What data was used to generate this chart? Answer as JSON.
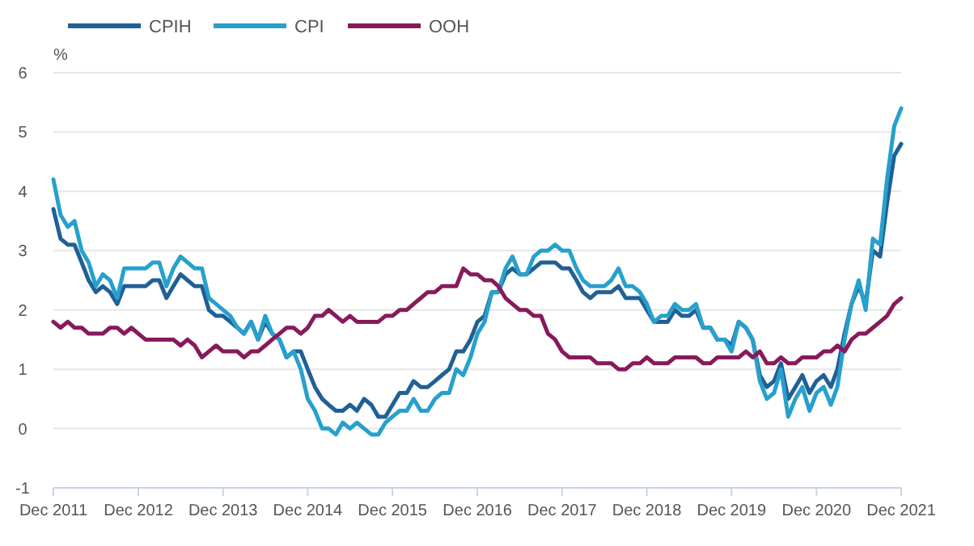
{
  "chart_data": {
    "type": "line",
    "ylabel": "%",
    "legend": "top",
    "grid": "y",
    "marker": "none",
    "line_style": "solid",
    "xlim": [
      "2011-12",
      "2021-12"
    ],
    "xticks": [
      {
        "value": "2011-12",
        "label": "Dec 2011"
      },
      {
        "value": "2012-12",
        "label": "Dec 2012"
      },
      {
        "value": "2013-12",
        "label": "Dec 2013"
      },
      {
        "value": "2014-12",
        "label": "Dec 2014"
      },
      {
        "value": "2015-12",
        "label": "Dec 2015"
      },
      {
        "value": "2016-12",
        "label": "Dec 2016"
      },
      {
        "value": "2017-12",
        "label": "Dec 2017"
      },
      {
        "value": "2018-12",
        "label": "Dec 2018"
      },
      {
        "value": "2019-12",
        "label": "Dec 2019"
      },
      {
        "value": "2020-12",
        "label": "Dec 2020"
      },
      {
        "value": "2021-12",
        "label": "Dec 2021"
      }
    ],
    "ylim": [
      -1,
      6
    ],
    "yticks": [
      -1,
      0,
      1,
      2,
      3,
      4,
      5,
      6
    ],
    "x": [
      "2011-12",
      "2012-01",
      "2012-02",
      "2012-03",
      "2012-04",
      "2012-05",
      "2012-06",
      "2012-07",
      "2012-08",
      "2012-09",
      "2012-10",
      "2012-11",
      "2012-12",
      "2013-01",
      "2013-02",
      "2013-03",
      "2013-04",
      "2013-05",
      "2013-06",
      "2013-07",
      "2013-08",
      "2013-09",
      "2013-10",
      "2013-11",
      "2013-12",
      "2014-01",
      "2014-02",
      "2014-03",
      "2014-04",
      "2014-05",
      "2014-06",
      "2014-07",
      "2014-08",
      "2014-09",
      "2014-10",
      "2014-11",
      "2014-12",
      "2015-01",
      "2015-02",
      "2015-03",
      "2015-04",
      "2015-05",
      "2015-06",
      "2015-07",
      "2015-08",
      "2015-09",
      "2015-10",
      "2015-11",
      "2015-12",
      "2016-01",
      "2016-02",
      "2016-03",
      "2016-04",
      "2016-05",
      "2016-06",
      "2016-07",
      "2016-08",
      "2016-09",
      "2016-10",
      "2016-11",
      "2016-12",
      "2017-01",
      "2017-02",
      "2017-03",
      "2017-04",
      "2017-05",
      "2017-06",
      "2017-07",
      "2017-08",
      "2017-09",
      "2017-10",
      "2017-11",
      "2017-12",
      "2018-01",
      "2018-02",
      "2018-03",
      "2018-04",
      "2018-05",
      "2018-06",
      "2018-07",
      "2018-08",
      "2018-09",
      "2018-10",
      "2018-11",
      "2018-12",
      "2019-01",
      "2019-02",
      "2019-03",
      "2019-04",
      "2019-05",
      "2019-06",
      "2019-07",
      "2019-08",
      "2019-09",
      "2019-10",
      "2019-11",
      "2019-12",
      "2020-01",
      "2020-02",
      "2020-03",
      "2020-04",
      "2020-05",
      "2020-06",
      "2020-07",
      "2020-08",
      "2020-09",
      "2020-10",
      "2020-11",
      "2020-12",
      "2021-01",
      "2021-02",
      "2021-03",
      "2021-04",
      "2021-05",
      "2021-06",
      "2021-07",
      "2021-08",
      "2021-09",
      "2021-10",
      "2021-11",
      "2021-12"
    ],
    "series": [
      {
        "name": "CPIH",
        "color": "#206095",
        "values": [
          3.7,
          3.2,
          3.1,
          3.1,
          2.8,
          2.5,
          2.3,
          2.4,
          2.3,
          2.1,
          2.4,
          2.4,
          2.4,
          2.4,
          2.5,
          2.5,
          2.2,
          2.4,
          2.6,
          2.5,
          2.4,
          2.4,
          2.0,
          1.9,
          1.9,
          1.8,
          1.7,
          1.6,
          1.8,
          1.5,
          1.8,
          1.6,
          1.5,
          1.2,
          1.3,
          1.3,
          1.0,
          0.7,
          0.5,
          0.4,
          0.3,
          0.3,
          0.4,
          0.3,
          0.5,
          0.4,
          0.2,
          0.2,
          0.4,
          0.6,
          0.6,
          0.8,
          0.7,
          0.7,
          0.8,
          0.9,
          1.0,
          1.3,
          1.3,
          1.5,
          1.8,
          1.9,
          2.3,
          2.3,
          2.6,
          2.7,
          2.6,
          2.6,
          2.7,
          2.8,
          2.8,
          2.8,
          2.7,
          2.7,
          2.5,
          2.3,
          2.2,
          2.3,
          2.3,
          2.3,
          2.4,
          2.2,
          2.2,
          2.2,
          2.0,
          1.8,
          1.8,
          1.8,
          2.0,
          1.9,
          1.9,
          2.0,
          1.7,
          1.7,
          1.5,
          1.5,
          1.4,
          1.8,
          1.7,
          1.5,
          0.9,
          0.7,
          0.8,
          1.1,
          0.5,
          0.7,
          0.9,
          0.6,
          0.8,
          0.9,
          0.7,
          1.0,
          1.6,
          2.1,
          2.4,
          2.1,
          3.0,
          2.9,
          3.8,
          4.6,
          4.8
        ]
      },
      {
        "name": "CPI",
        "color": "#27a0cc",
        "values": [
          4.2,
          3.6,
          3.4,
          3.5,
          3.0,
          2.8,
          2.4,
          2.6,
          2.5,
          2.2,
          2.7,
          2.7,
          2.7,
          2.7,
          2.8,
          2.8,
          2.4,
          2.7,
          2.9,
          2.8,
          2.7,
          2.7,
          2.2,
          2.1,
          2.0,
          1.9,
          1.7,
          1.6,
          1.8,
          1.5,
          1.9,
          1.6,
          1.5,
          1.2,
          1.3,
          1.0,
          0.5,
          0.3,
          0.0,
          0.0,
          -0.1,
          0.1,
          0.0,
          0.1,
          0.0,
          -0.1,
          -0.1,
          0.1,
          0.2,
          0.3,
          0.3,
          0.5,
          0.3,
          0.3,
          0.5,
          0.6,
          0.6,
          1.0,
          0.9,
          1.2,
          1.6,
          1.8,
          2.3,
          2.3,
          2.7,
          2.9,
          2.6,
          2.6,
          2.9,
          3.0,
          3.0,
          3.1,
          3.0,
          3.0,
          2.7,
          2.5,
          2.4,
          2.4,
          2.4,
          2.5,
          2.7,
          2.4,
          2.4,
          2.3,
          2.1,
          1.8,
          1.9,
          1.9,
          2.1,
          2.0,
          2.0,
          2.1,
          1.7,
          1.7,
          1.5,
          1.5,
          1.3,
          1.8,
          1.7,
          1.5,
          0.8,
          0.5,
          0.6,
          1.0,
          0.2,
          0.5,
          0.7,
          0.3,
          0.6,
          0.7,
          0.4,
          0.7,
          1.5,
          2.1,
          2.5,
          2.0,
          3.2,
          3.1,
          4.2,
          5.1,
          5.4
        ]
      },
      {
        "name": "OOH",
        "color": "#871a5b",
        "values": [
          1.8,
          1.7,
          1.8,
          1.7,
          1.7,
          1.6,
          1.6,
          1.6,
          1.7,
          1.7,
          1.6,
          1.7,
          1.6,
          1.5,
          1.5,
          1.5,
          1.5,
          1.5,
          1.4,
          1.5,
          1.4,
          1.2,
          1.3,
          1.4,
          1.3,
          1.3,
          1.3,
          1.2,
          1.3,
          1.3,
          1.4,
          1.5,
          1.6,
          1.7,
          1.7,
          1.6,
          1.7,
          1.9,
          1.9,
          2.0,
          1.9,
          1.8,
          1.9,
          1.8,
          1.8,
          1.8,
          1.8,
          1.9,
          1.9,
          2.0,
          2.0,
          2.1,
          2.2,
          2.3,
          2.3,
          2.4,
          2.4,
          2.4,
          2.7,
          2.6,
          2.6,
          2.5,
          2.5,
          2.4,
          2.2,
          2.1,
          2.0,
          2.0,
          1.9,
          1.9,
          1.6,
          1.5,
          1.3,
          1.2,
          1.2,
          1.2,
          1.2,
          1.1,
          1.1,
          1.1,
          1.0,
          1.0,
          1.1,
          1.1,
          1.2,
          1.1,
          1.1,
          1.1,
          1.2,
          1.2,
          1.2,
          1.2,
          1.1,
          1.1,
          1.2,
          1.2,
          1.2,
          1.2,
          1.3,
          1.2,
          1.3,
          1.1,
          1.1,
          1.2,
          1.1,
          1.1,
          1.2,
          1.2,
          1.2,
          1.3,
          1.3,
          1.4,
          1.3,
          1.5,
          1.6,
          1.6,
          1.7,
          1.8,
          1.9,
          2.1,
          2.2
        ]
      }
    ]
  }
}
